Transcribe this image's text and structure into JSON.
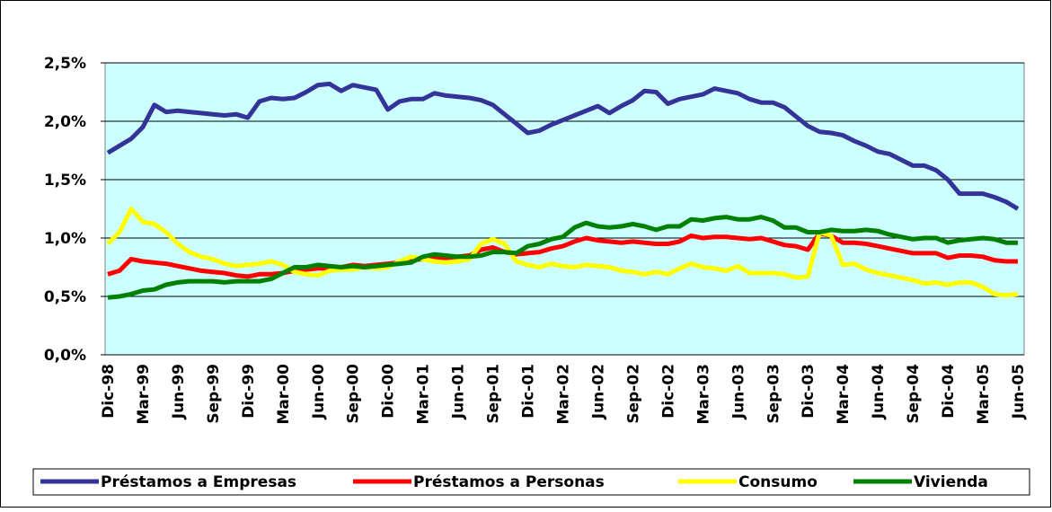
{
  "chart_data": {
    "type": "line",
    "categories": [
      "Dic-98",
      null,
      null,
      "Mar-99",
      null,
      null,
      "Jun-99",
      null,
      null,
      "Sep-99",
      null,
      null,
      "Dic-99",
      null,
      null,
      "Mar-00",
      null,
      null,
      "Jun-00",
      null,
      null,
      "Sep-00",
      null,
      null,
      "Dic-00",
      null,
      null,
      "Mar-01",
      null,
      null,
      "Jun-01",
      null,
      null,
      "Sep-01",
      null,
      null,
      "Dic-01",
      null,
      null,
      "Mar-02",
      null,
      null,
      "Jun-02",
      null,
      null,
      "Sep-02",
      null,
      null,
      "Dic-02",
      null,
      null,
      "Mar-03",
      null,
      null,
      "Jun-03",
      null,
      null,
      "Sep-03",
      null,
      null,
      "Dic-03",
      null,
      null,
      "Mar-04",
      null,
      null,
      "Jun-04",
      null,
      null,
      "Sep-04",
      null,
      null,
      "Dic-04",
      null,
      null,
      "Mar-05",
      null,
      null,
      "Jun-05"
    ],
    "series": [
      {
        "name": "Préstamos a Empresas",
        "color": "#333399",
        "values": [
          1.73,
          1.79,
          1.85,
          1.95,
          2.14,
          2.08,
          2.09,
          2.08,
          2.07,
          2.06,
          2.05,
          2.06,
          2.03,
          2.17,
          2.2,
          2.19,
          2.2,
          2.25,
          2.31,
          2.32,
          2.26,
          2.31,
          2.29,
          2.27,
          2.1,
          2.17,
          2.19,
          2.19,
          2.24,
          2.22,
          2.21,
          2.2,
          2.18,
          2.14,
          2.06,
          1.98,
          1.9,
          1.92,
          1.97,
          2.01,
          2.05,
          2.09,
          2.13,
          2.07,
          2.13,
          2.18,
          2.26,
          2.25,
          2.15,
          2.19,
          2.21,
          2.23,
          2.28,
          2.26,
          2.24,
          2.19,
          2.16,
          2.16,
          2.12,
          2.04,
          1.96,
          1.91,
          1.9,
          1.88,
          1.83,
          1.79,
          1.74,
          1.72,
          1.67,
          1.62,
          1.62,
          1.58,
          1.5,
          1.38,
          1.38,
          1.38,
          1.35,
          1.31,
          1.25
        ]
      },
      {
        "name": "Préstamos a Personas",
        "color": "#ff0000",
        "values": [
          0.69,
          0.72,
          0.82,
          0.8,
          0.79,
          0.78,
          0.76,
          0.74,
          0.72,
          0.71,
          0.7,
          0.68,
          0.67,
          0.69,
          0.69,
          0.7,
          0.72,
          0.73,
          0.74,
          0.74,
          0.75,
          0.77,
          0.76,
          0.77,
          0.78,
          0.79,
          0.81,
          0.82,
          0.83,
          0.83,
          0.84,
          0.85,
          0.9,
          0.92,
          0.88,
          0.86,
          0.87,
          0.88,
          0.91,
          0.93,
          0.97,
          1.0,
          0.98,
          0.97,
          0.96,
          0.97,
          0.96,
          0.95,
          0.95,
          0.97,
          1.02,
          1.0,
          1.01,
          1.01,
          1.0,
          0.99,
          1.0,
          0.97,
          0.94,
          0.93,
          0.9,
          1.04,
          1.02,
          0.96,
          0.96,
          0.95,
          0.93,
          0.91,
          0.89,
          0.87,
          0.87,
          0.87,
          0.83,
          0.85,
          0.85,
          0.84,
          0.81,
          0.8,
          0.8
        ]
      },
      {
        "name": "Consumo",
        "color": "#ffff00",
        "values": [
          0.95,
          1.05,
          1.25,
          1.14,
          1.12,
          1.05,
          0.95,
          0.88,
          0.84,
          0.82,
          0.78,
          0.76,
          0.77,
          0.78,
          0.8,
          0.77,
          0.71,
          0.69,
          0.68,
          0.72,
          0.73,
          0.73,
          0.75,
          0.74,
          0.75,
          0.8,
          0.84,
          0.82,
          0.8,
          0.79,
          0.8,
          0.82,
          0.95,
          0.99,
          0.95,
          0.8,
          0.77,
          0.75,
          0.78,
          0.76,
          0.75,
          0.77,
          0.76,
          0.75,
          0.72,
          0.71,
          0.69,
          0.71,
          0.69,
          0.74,
          0.78,
          0.75,
          0.74,
          0.72,
          0.76,
          0.7,
          0.7,
          0.7,
          0.69,
          0.66,
          0.67,
          1.05,
          1.02,
          0.77,
          0.78,
          0.73,
          0.7,
          0.68,
          0.66,
          0.64,
          0.61,
          0.62,
          0.6,
          0.62,
          0.62,
          0.58,
          0.52,
          0.51,
          0.52
        ]
      },
      {
        "name": "Vivienda",
        "color": "#008000",
        "values": [
          0.49,
          0.5,
          0.52,
          0.55,
          0.56,
          0.6,
          0.62,
          0.63,
          0.63,
          0.63,
          0.62,
          0.63,
          0.63,
          0.63,
          0.65,
          0.7,
          0.75,
          0.75,
          0.77,
          0.76,
          0.75,
          0.76,
          0.75,
          0.76,
          0.77,
          0.78,
          0.79,
          0.84,
          0.86,
          0.85,
          0.84,
          0.84,
          0.85,
          0.88,
          0.88,
          0.87,
          0.93,
          0.95,
          0.99,
          1.01,
          1.09,
          1.13,
          1.1,
          1.09,
          1.1,
          1.12,
          1.1,
          1.07,
          1.1,
          1.1,
          1.16,
          1.15,
          1.17,
          1.18,
          1.16,
          1.16,
          1.18,
          1.15,
          1.09,
          1.09,
          1.05,
          1.05,
          1.07,
          1.06,
          1.06,
          1.07,
          1.06,
          1.03,
          1.01,
          0.99,
          1.0,
          1.0,
          0.96,
          0.98,
          0.99,
          1.0,
          0.99,
          0.96,
          0.96
        ]
      }
    ],
    "ylim": [
      0,
      2.5
    ],
    "yticks": [
      {
        "value": 0,
        "label": "0,0%"
      },
      {
        "value": 0.5,
        "label": "0,5%"
      },
      {
        "value": 1,
        "label": "1,0%"
      },
      {
        "value": 1.5,
        "label": "1,5%"
      },
      {
        "value": 2,
        "label": "2,0%"
      },
      {
        "value": 2.5,
        "label": "2,5%"
      }
    ],
    "grid": true,
    "legend": "bottom"
  }
}
